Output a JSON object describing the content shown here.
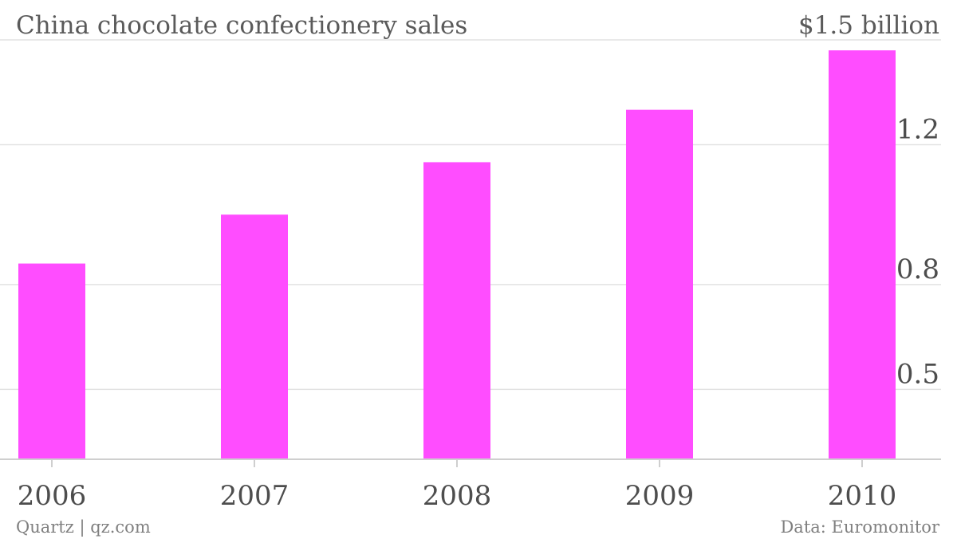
{
  "chart_data": {
    "type": "bar",
    "title": "China chocolate confectionery sales",
    "max_label": "$1.5 billion",
    "categories": [
      "2006",
      "2007",
      "2008",
      "2009",
      "2010"
    ],
    "values": [
      0.86,
      1.0,
      1.15,
      1.3,
      1.47
    ],
    "y_ticks": [
      {
        "value": 0.5,
        "label": "0.5"
      },
      {
        "value": 0.8,
        "label": "0.8"
      },
      {
        "value": 1.2,
        "label": "1.2"
      },
      {
        "value": 1.5,
        "label": "$1.5 billion"
      }
    ],
    "ylim": [
      0.3,
      1.5
    ],
    "grid": true,
    "bar_color": "#ff4dff",
    "source": "Data: Euromonitor",
    "credit": "Quartz | qz.com"
  }
}
